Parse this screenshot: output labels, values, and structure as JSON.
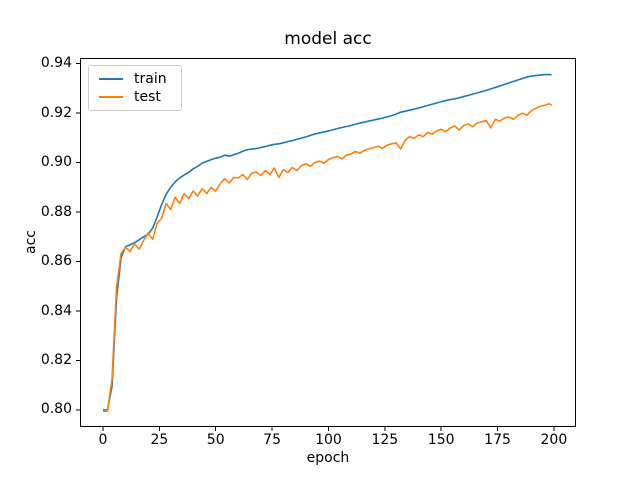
{
  "window": {
    "background": "#ffffff"
  },
  "chart_data": {
    "type": "line",
    "title": "model acc",
    "xlabel": "epoch",
    "ylabel": "acc",
    "xlim": [
      -10.2,
      209.8
    ],
    "ylim": [
      0.7931,
      0.9423
    ],
    "xticks": [
      0,
      25,
      50,
      75,
      100,
      125,
      150,
      175,
      200
    ],
    "xtick_labels": [
      "0",
      "25",
      "50",
      "75",
      "100",
      "125",
      "150",
      "175",
      "200"
    ],
    "yticks": [
      0.8,
      0.82,
      0.84,
      0.86,
      0.88,
      0.9,
      0.92,
      0.94
    ],
    "ytick_labels": [
      "0.80",
      "0.82",
      "0.84",
      "0.86",
      "0.88",
      "0.90",
      "0.92",
      "0.94"
    ],
    "grid": false,
    "legend_position": "upper-left",
    "axis_color": "#000000",
    "legend_border_color": "#cccccc",
    "series": [
      {
        "name": "train",
        "color": "#1f77b4",
        "x": [
          0,
          2,
          4,
          6,
          8,
          10,
          12,
          14,
          16,
          18,
          20,
          22,
          24,
          26,
          28,
          30,
          32,
          34,
          36,
          38,
          40,
          42,
          44,
          46,
          48,
          50,
          52,
          54,
          56,
          58,
          60,
          62,
          64,
          66,
          68,
          70,
          72,
          74,
          76,
          78,
          80,
          82,
          84,
          86,
          88,
          90,
          92,
          94,
          96,
          98,
          100,
          102,
          104,
          106,
          108,
          110,
          112,
          114,
          116,
          118,
          120,
          122,
          124,
          126,
          128,
          130,
          132,
          134,
          136,
          138,
          140,
          142,
          144,
          146,
          148,
          150,
          152,
          154,
          156,
          158,
          160,
          162,
          164,
          166,
          168,
          170,
          172,
          174,
          176,
          178,
          180,
          182,
          184,
          186,
          188,
          190,
          192,
          194,
          196,
          198,
          199
        ],
        "y": [
          0.8,
          0.8,
          0.8095,
          0.845,
          0.8615,
          0.866,
          0.8668,
          0.8676,
          0.8688,
          0.87,
          0.871,
          0.8735,
          0.878,
          0.883,
          0.8872,
          0.89,
          0.8922,
          0.8938,
          0.895,
          0.896,
          0.8975,
          0.8985,
          0.8998,
          0.9005,
          0.9012,
          0.9018,
          0.9022,
          0.903,
          0.9026,
          0.9032,
          0.9038,
          0.9046,
          0.9052,
          0.9055,
          0.9057,
          0.9061,
          0.9065,
          0.907,
          0.9074,
          0.9076,
          0.908,
          0.9085,
          0.9089,
          0.9094,
          0.9099,
          0.9104,
          0.911,
          0.9116,
          0.912,
          0.9124,
          0.9128,
          0.9133,
          0.9138,
          0.9142,
          0.9146,
          0.915,
          0.9155,
          0.916,
          0.9164,
          0.9168,
          0.9172,
          0.9176,
          0.918,
          0.9185,
          0.919,
          0.9196,
          0.9204,
          0.9208,
          0.9212,
          0.9216,
          0.9221,
          0.9226,
          0.9231,
          0.9236,
          0.9241,
          0.9246,
          0.9251,
          0.9255,
          0.9258,
          0.9262,
          0.9267,
          0.9272,
          0.9277,
          0.9282,
          0.9287,
          0.9292,
          0.9298,
          0.9304,
          0.931,
          0.9316,
          0.9322,
          0.9328,
          0.9334,
          0.934,
          0.9346,
          0.935,
          0.9352,
          0.9354,
          0.9356,
          0.9356,
          0.9355
        ]
      },
      {
        "name": "test",
        "color": "#ff7f0e",
        "x": [
          0,
          2,
          4,
          6,
          8,
          10,
          12,
          14,
          16,
          18,
          20,
          22,
          24,
          26,
          28,
          30,
          32,
          34,
          36,
          38,
          40,
          42,
          44,
          46,
          48,
          50,
          52,
          54,
          56,
          58,
          60,
          62,
          64,
          66,
          68,
          70,
          72,
          74,
          76,
          78,
          80,
          82,
          84,
          86,
          88,
          90,
          92,
          94,
          96,
          98,
          100,
          102,
          104,
          106,
          108,
          110,
          112,
          114,
          116,
          118,
          120,
          122,
          124,
          126,
          128,
          130,
          132,
          134,
          136,
          138,
          140,
          142,
          144,
          146,
          148,
          150,
          152,
          154,
          156,
          158,
          160,
          162,
          164,
          166,
          168,
          170,
          172,
          174,
          176,
          178,
          180,
          182,
          184,
          186,
          188,
          190,
          192,
          194,
          196,
          198,
          199
        ],
        "y": [
          0.7995,
          0.7995,
          0.8125,
          0.8495,
          0.8632,
          0.8658,
          0.864,
          0.8672,
          0.865,
          0.8685,
          0.8715,
          0.869,
          0.8755,
          0.8775,
          0.8835,
          0.881,
          0.886,
          0.8835,
          0.8875,
          0.8855,
          0.8885,
          0.8865,
          0.8895,
          0.8875,
          0.89,
          0.8885,
          0.8915,
          0.8935,
          0.8918,
          0.894,
          0.8938,
          0.8952,
          0.8932,
          0.8958,
          0.8962,
          0.8948,
          0.8968,
          0.8952,
          0.8978,
          0.894,
          0.8972,
          0.896,
          0.898,
          0.8968,
          0.8988,
          0.8995,
          0.8985,
          0.9,
          0.9006,
          0.8998,
          0.9012,
          0.902,
          0.9025,
          0.9015,
          0.903,
          0.9035,
          0.9045,
          0.9038,
          0.905,
          0.9055,
          0.906,
          0.9066,
          0.9058,
          0.907,
          0.9076,
          0.908,
          0.9055,
          0.909,
          0.9105,
          0.9098,
          0.9112,
          0.9105,
          0.9122,
          0.9115,
          0.9128,
          0.9135,
          0.9125,
          0.914,
          0.9148,
          0.9132,
          0.915,
          0.9156,
          0.9145,
          0.916,
          0.9165,
          0.917,
          0.914,
          0.9175,
          0.9168,
          0.918,
          0.9185,
          0.9175,
          0.919,
          0.92,
          0.9192,
          0.921,
          0.922,
          0.9228,
          0.9232,
          0.9238,
          0.9232
        ]
      }
    ]
  },
  "legend": {
    "items": [
      {
        "label": "train",
        "color": "#1f77b4"
      },
      {
        "label": "test",
        "color": "#ff7f0e"
      }
    ]
  }
}
